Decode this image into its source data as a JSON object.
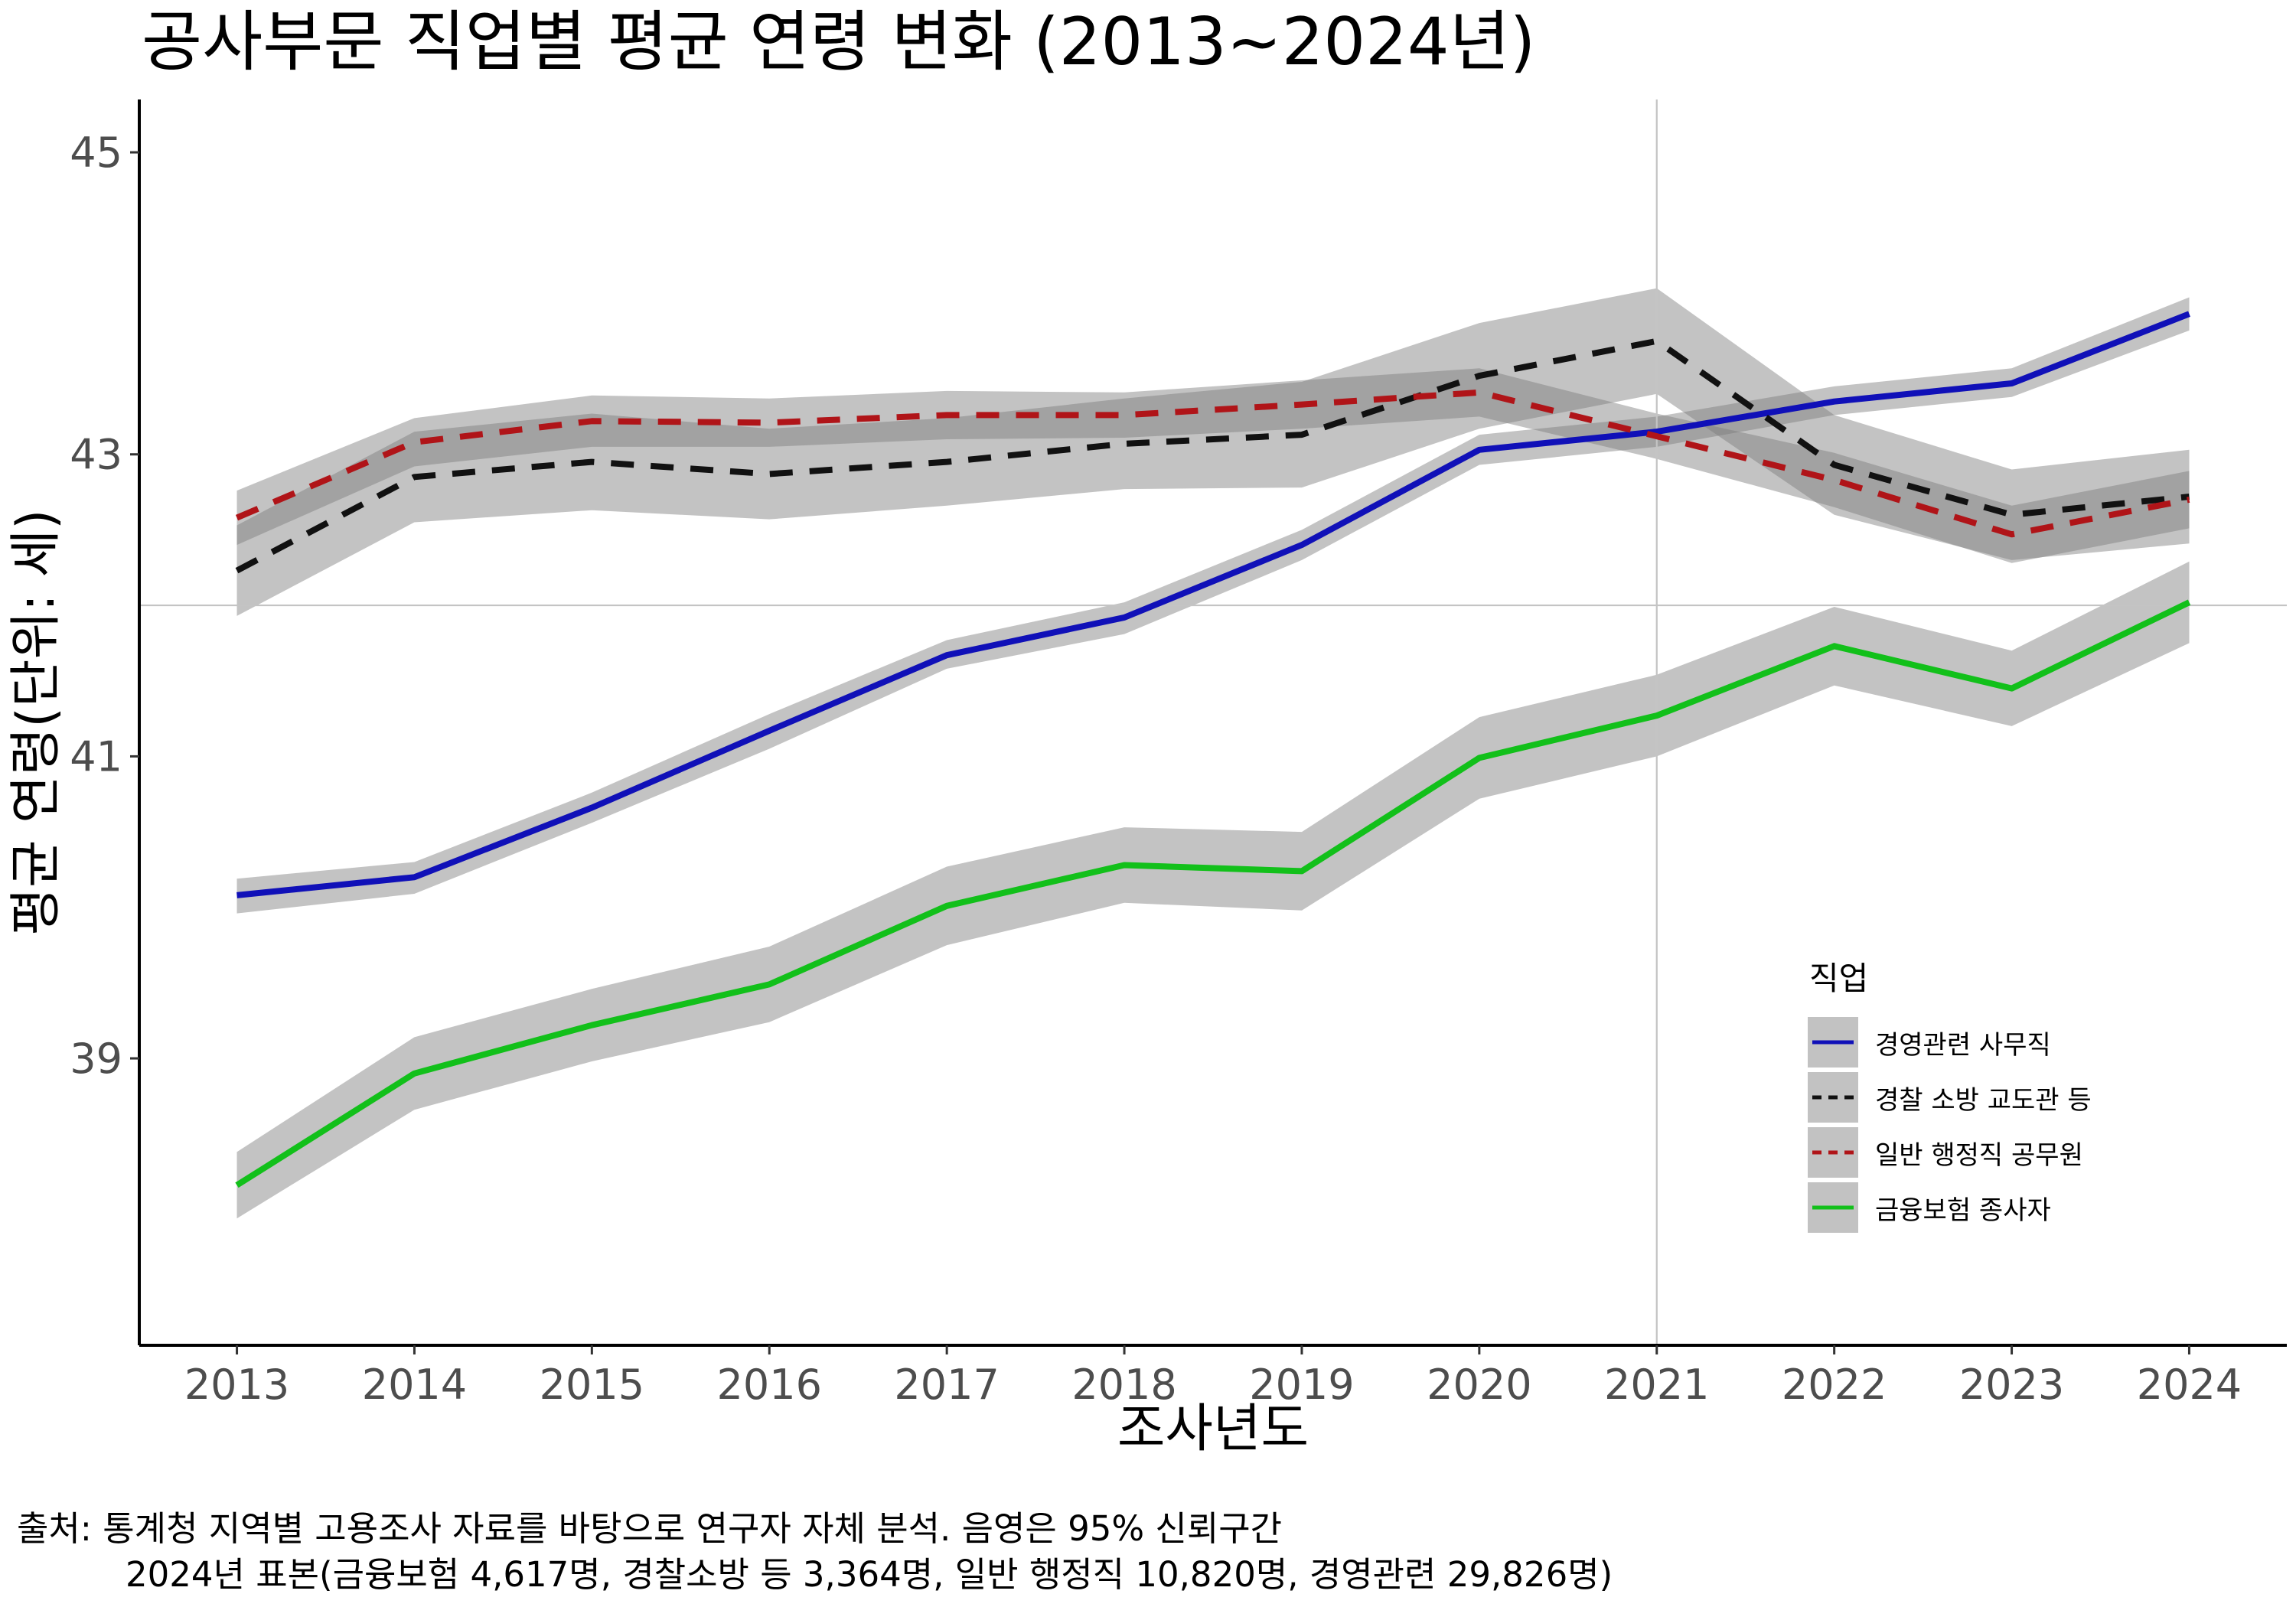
{
  "chart_data": {
    "type": "line",
    "title": "공사부문 직업별 평균 연령 변화 (2013~2024년)",
    "xlabel": "조사년도",
    "ylabel": "평균 연령(단위: 세)",
    "x": [
      2013,
      2014,
      2015,
      2016,
      2017,
      2018,
      2019,
      2020,
      2021,
      2022,
      2023,
      2024
    ],
    "x_tick_labels": [
      "2013",
      "2014",
      "2015",
      "2016",
      "2017",
      "2018",
      "2019",
      "2020",
      "2021",
      "2022",
      "2023",
      "2024"
    ],
    "y_ticks": [
      39,
      41,
      43,
      45
    ],
    "y_tick_labels": [
      "39",
      "41",
      "43",
      "45"
    ],
    "ylim": [
      37.1,
      45.35
    ],
    "xlim": [
      2012.45,
      2024.55
    ],
    "grid": false,
    "reference_lines": {
      "vertical_x": 2021,
      "horizontal_y": 42.0
    },
    "confidence_band": "95%",
    "legend": {
      "title": "직업",
      "position": "right-bottom"
    },
    "series": [
      {
        "name": "경영관련 사무직",
        "color": "#1010B8",
        "linestyle": "solid",
        "values": [
          40.08,
          40.2,
          40.66,
          41.17,
          41.67,
          41.92,
          42.4,
          43.03,
          43.15,
          43.35,
          43.47,
          43.93
        ],
        "ci_low": [
          39.96,
          40.09,
          40.56,
          41.05,
          41.58,
          41.81,
          42.3,
          42.93,
          43.05,
          43.26,
          43.38,
          43.82
        ],
        "ci_high": [
          40.19,
          40.3,
          40.76,
          41.28,
          41.77,
          42.02,
          42.5,
          43.13,
          43.25,
          43.45,
          43.57,
          44.04
        ]
      },
      {
        "name": "경찰 소방 교도관 등",
        "color": "#111111",
        "linestyle": "dashed",
        "values": [
          42.23,
          42.85,
          42.95,
          42.87,
          42.95,
          43.07,
          43.13,
          43.52,
          43.75,
          42.93,
          42.6,
          42.72
        ],
        "ci_low": [
          41.93,
          42.55,
          42.63,
          42.57,
          42.66,
          42.77,
          42.78,
          43.17,
          43.4,
          42.6,
          42.3,
          42.41
        ],
        "ci_high": [
          42.53,
          43.15,
          43.27,
          43.17,
          43.24,
          43.37,
          43.48,
          43.87,
          44.1,
          43.26,
          42.9,
          43.03
        ]
      },
      {
        "name": "일반 행정직 공무원",
        "color": "#B01418",
        "linestyle": "dashed",
        "values": [
          42.58,
          43.08,
          43.22,
          43.21,
          43.26,
          43.26,
          43.33,
          43.41,
          43.12,
          42.83,
          42.47,
          42.7
        ],
        "ci_low": [
          42.4,
          42.92,
          43.05,
          43.05,
          43.1,
          43.11,
          43.17,
          43.25,
          42.97,
          42.65,
          42.28,
          42.51
        ],
        "ci_high": [
          42.76,
          43.24,
          43.39,
          43.37,
          43.42,
          43.41,
          43.49,
          43.57,
          43.27,
          43.01,
          42.66,
          42.89
        ]
      },
      {
        "name": "금융보험 종사자",
        "color": "#12C01A",
        "linestyle": "solid",
        "values": [
          38.16,
          38.9,
          39.22,
          39.49,
          40.01,
          40.28,
          40.24,
          40.99,
          41.27,
          41.73,
          41.45,
          42.02
        ],
        "ci_low": [
          37.94,
          38.66,
          38.98,
          39.24,
          39.75,
          40.03,
          39.98,
          40.72,
          41.0,
          41.47,
          41.2,
          41.75
        ],
        "ci_high": [
          38.38,
          39.14,
          39.46,
          39.74,
          40.27,
          40.53,
          40.5,
          41.26,
          41.54,
          41.99,
          41.7,
          42.29
        ]
      }
    ]
  },
  "caption": {
    "line1": "출처: 통계청 지역별 고용조사 자료를 바탕으로 연구자 자체 분석. 음영은 95% 신뢰구간",
    "line2": "2024년 표본(금융보험 4,617명, 경찰소방 등 3,364명, 일반 행정직 10,820명, 경영관련 29,826명)"
  }
}
